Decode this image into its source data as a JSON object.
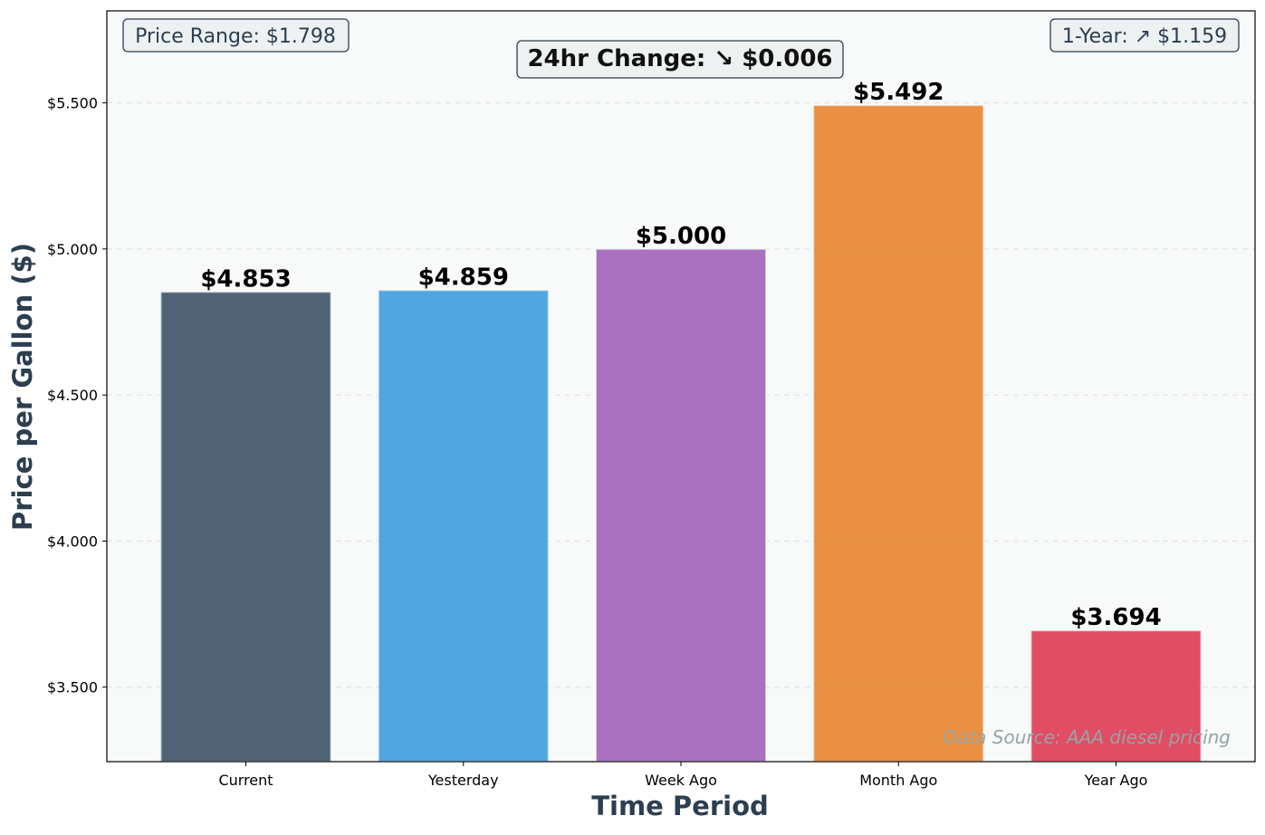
{
  "chart_data": {
    "type": "bar",
    "xlabel": "Time Period",
    "ylabel": "Price per Gallon ($)",
    "categories": [
      "Current",
      "Yesterday",
      "Week Ago",
      "Month Ago",
      "Year Ago"
    ],
    "values": [
      4.853,
      4.859,
      5.0,
      5.492,
      3.694
    ],
    "value_labels": [
      "$4.853",
      "$4.859",
      "$5.000",
      "$5.492",
      "$3.694"
    ],
    "colors": [
      "#34495e",
      "#3498db",
      "#9b59b6",
      "#e67e22",
      "#dc2f4a"
    ],
    "ylim": [
      3.245,
      5.815
    ],
    "yticks": [
      3.5,
      4.0,
      4.5,
      5.0,
      5.5
    ],
    "ytick_labels": [
      "$3.500",
      "$4.000",
      "$4.500",
      "$5.000",
      "$5.500"
    ],
    "grid": true,
    "annotations": {
      "price_range": "Price Range: $1.798",
      "change_24hr": "24hr Change: ↘ $0.006",
      "one_year": "1-Year: ↗ $1.159",
      "source": "Data Source: AAA diesel pricing"
    },
    "style": {
      "plot_background": "#f8f9f9",
      "axis_label_color": "#2c3e50",
      "box_text_color": "#2c3e50",
      "source_text_color": "#95a5a6"
    }
  }
}
